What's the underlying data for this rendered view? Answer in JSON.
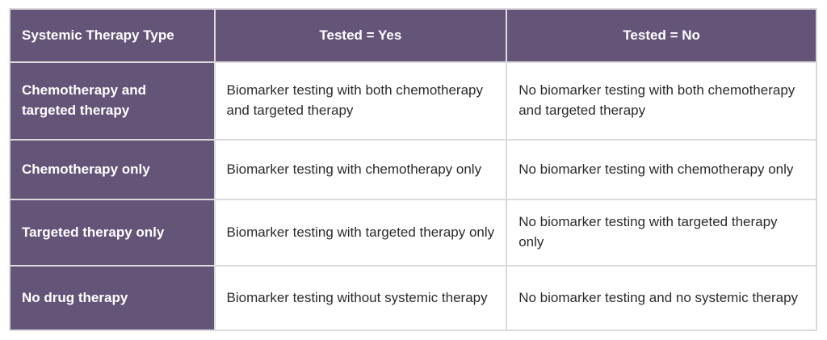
{
  "chart_data": {
    "type": "table",
    "title": "",
    "columns": [
      "Systemic Therapy Type",
      "Tested = Yes",
      "Tested = No"
    ],
    "rows": [
      [
        "Chemotherapy and targeted therapy",
        "Biomarker testing with both chemotherapy and targeted therapy",
        "No biomarker testing with both chemotherapy and targeted therapy"
      ],
      [
        "Chemotherapy only",
        "Biomarker testing with chemotherapy only",
        "No biomarker testing with chemotherapy only"
      ],
      [
        "Targeted therapy only",
        "Biomarker testing with targeted therapy only",
        "No biomarker testing with targeted therapy only"
      ],
      [
        "No drug therapy",
        "Biomarker testing without systemic therapy",
        "No biomarker testing and no systemic therapy"
      ]
    ],
    "layout": {
      "header_row_purple": true,
      "first_column_purple": true,
      "gridlines": true
    }
  },
  "colors": {
    "header_bg": "#635478",
    "row_label_bg": "#635478",
    "body_bg": "#ffffff",
    "gridline": "#dcdadd",
    "header_text": "#ffffff",
    "body_text": "#2b2b2b"
  }
}
